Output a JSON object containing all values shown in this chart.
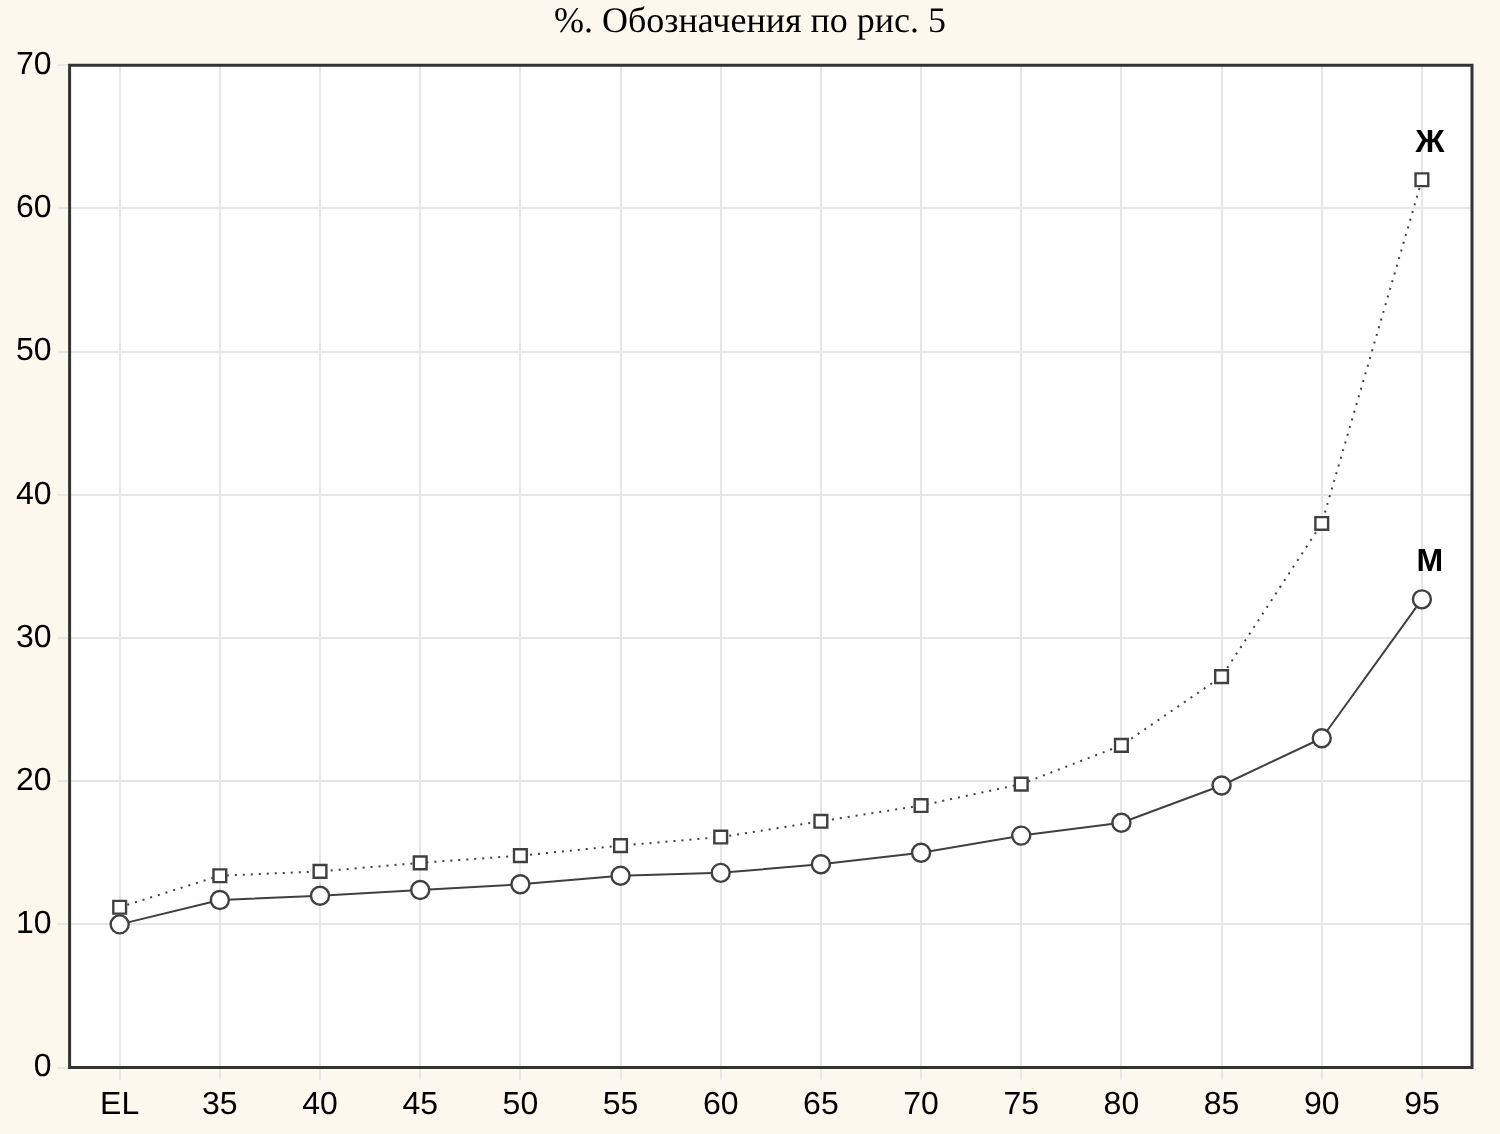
{
  "chart_data": {
    "type": "line",
    "title": "%. Обозначения по рис. 5",
    "categories": [
      "EL",
      "35",
      "40",
      "45",
      "50",
      "55",
      "60",
      "65",
      "70",
      "75",
      "80",
      "85",
      "90",
      "95"
    ],
    "series": [
      {
        "name": "Ж",
        "color": "#404040",
        "marker": "square",
        "line_style": "dotted",
        "values": [
          11.2,
          13.4,
          13.7,
          14.3,
          14.8,
          15.5,
          16.1,
          17.2,
          18.3,
          19.8,
          22.5,
          27.3,
          38,
          62
        ]
      },
      {
        "name": "М",
        "color": "#404040",
        "marker": "circle",
        "line_style": "solid",
        "values": [
          10,
          11.7,
          12,
          12.4,
          12.8,
          13.4,
          13.6,
          14.2,
          15,
          16.2,
          17.1,
          19.7,
          23,
          32.7
        ]
      }
    ],
    "ylim": [
      0,
      70
    ],
    "yticks": [
      0,
      10,
      20,
      30,
      40,
      50,
      60,
      70
    ],
    "grid": true,
    "legend": false
  }
}
